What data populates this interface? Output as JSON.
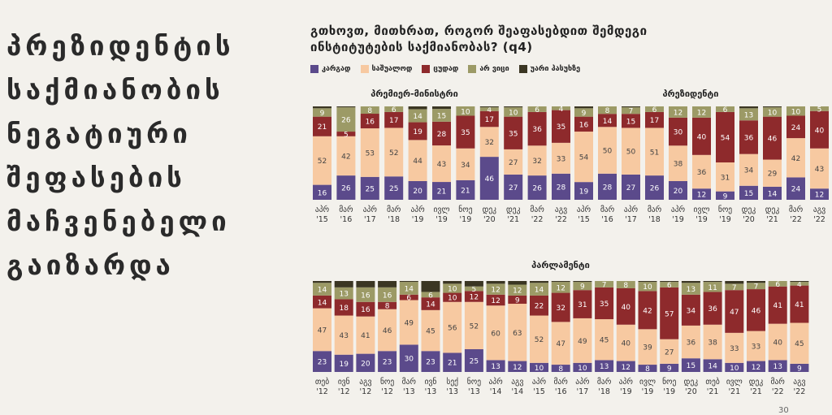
{
  "headline": [
    "პრეზიდენტის",
    "საქმიანობის",
    "ნეგატიური",
    "შეფასების",
    "მაჩვენებელი",
    "გაიზარდა"
  ],
  "question": [
    "გთხოვთ, მითხრათ, როგორ შეაფასებდით  შემდეგი",
    "ინსტიტუტების საქმიანობას? (q4)"
  ],
  "legend": [
    {
      "label": "კარგად",
      "color": "#5b4a8b"
    },
    {
      "label": "საშუალოდ",
      "color": "#f7c9a1"
    },
    {
      "label": "ცუდად",
      "color": "#8e2a2c"
    },
    {
      "label": "არ ვიცი",
      "color": "#9c9a66"
    },
    {
      "label": "უარი პასუხზე",
      "color": "#3b3623"
    }
  ],
  "page_number": "30",
  "chart_data": [
    {
      "type": "bar",
      "title": "პრემიერ-მინისტრი",
      "categories": [
        [
          "აპრ",
          "'15"
        ],
        [
          "მარ",
          "'16"
        ],
        [
          "აპრ",
          "'17"
        ],
        [
          "მარ",
          "'18"
        ],
        [
          "აპრ",
          "'19"
        ],
        [
          "ივლ",
          "'19"
        ],
        [
          "ნოე",
          "'19"
        ],
        [
          "დეკ",
          "'20"
        ],
        [
          "დეკ",
          "'21"
        ],
        [
          "მარ",
          "'22"
        ],
        [
          "აგვ",
          "'22"
        ]
      ],
      "series": [
        {
          "name": "კარგად",
          "values": [
            16,
            26,
            25,
            25,
            20,
            21,
            21,
            46,
            27,
            26,
            28
          ]
        },
        {
          "name": "საშუალოდ",
          "values": [
            52,
            42,
            53,
            52,
            44,
            43,
            34,
            32,
            27,
            32,
            33
          ]
        },
        {
          "name": "ცუდად",
          "values": [
            21,
            5,
            16,
            17,
            19,
            28,
            35,
            17,
            35,
            36,
            35
          ]
        },
        {
          "name": "არ ვიცი",
          "values": [
            9,
            26,
            8,
            6,
            14,
            15,
            10,
            4,
            10,
            6,
            4
          ]
        },
        {
          "name": "უარი პასუხზე",
          "values": [
            2,
            1,
            0,
            0,
            3,
            3,
            0,
            1,
            1,
            0,
            0
          ]
        }
      ]
    },
    {
      "type": "bar",
      "title": "პრეზიდენტი",
      "categories": [
        [
          "აპრ",
          "'15"
        ],
        [
          "მარ",
          "'16"
        ],
        [
          "აპრ",
          "'17"
        ],
        [
          "მარ",
          "'18"
        ],
        [
          "აპრ",
          "'19"
        ],
        [
          "ივლ",
          "'19"
        ],
        [
          "ნოე",
          "'19"
        ],
        [
          "დეკ",
          "'20"
        ],
        [
          "დეკ",
          "'21"
        ],
        [
          "მარ",
          "'22"
        ],
        [
          "აგვ",
          "'22"
        ]
      ],
      "series": [
        {
          "name": "კარგად",
          "values": [
            19,
            28,
            27,
            26,
            20,
            12,
            9,
            15,
            14,
            24,
            12
          ]
        },
        {
          "name": "საშუალოდ",
          "values": [
            54,
            50,
            50,
            51,
            38,
            36,
            31,
            34,
            29,
            42,
            43
          ]
        },
        {
          "name": "ცუდად",
          "values": [
            16,
            14,
            15,
            17,
            30,
            40,
            54,
            36,
            46,
            24,
            40
          ]
        },
        {
          "name": "არ ვიცი",
          "values": [
            9,
            8,
            7,
            6,
            12,
            12,
            6,
            13,
            10,
            10,
            5
          ]
        },
        {
          "name": "უარი პასუხზე",
          "values": [
            2,
            0,
            1,
            0,
            0,
            0,
            0,
            2,
            1,
            0,
            0
          ]
        }
      ]
    },
    {
      "type": "bar",
      "title": "პარლამენტი",
      "categories": [
        [
          "თებ",
          "'12"
        ],
        [
          "ივნ",
          "'12"
        ],
        [
          "აგვ",
          "'12"
        ],
        [
          "ნოე",
          "'12"
        ],
        [
          "მარ",
          "'13"
        ],
        [
          "ივნ",
          "'13"
        ],
        [
          "სექ",
          "'13"
        ],
        [
          "ნოე",
          "'13"
        ],
        [
          "აპრ",
          "'14"
        ],
        [
          "აგვ",
          "'14"
        ],
        [
          "აპრ",
          "'15"
        ],
        [
          "მარ",
          "'16"
        ],
        [
          "აპრ",
          "'17"
        ],
        [
          "მარ",
          "'18"
        ],
        [
          "აპრ",
          "'19"
        ],
        [
          "ივლ",
          "'19"
        ],
        [
          "ნოე",
          "'19"
        ],
        [
          "დეკ",
          "'20"
        ],
        [
          "თებ",
          "'21"
        ],
        [
          "ივლ",
          "'21"
        ],
        [
          "დეკ",
          "'21"
        ],
        [
          "მარ",
          "'22"
        ],
        [
          "აგვ",
          "'22"
        ]
      ],
      "series": [
        {
          "name": "კარგად",
          "values": [
            23,
            19,
            20,
            23,
            30,
            23,
            21,
            25,
            13,
            12,
            10,
            8,
            10,
            13,
            12,
            8,
            9,
            15,
            14,
            10,
            12,
            13,
            9
          ]
        },
        {
          "name": "საშუალოდ",
          "values": [
            47,
            43,
            41,
            46,
            49,
            45,
            56,
            52,
            60,
            63,
            52,
            47,
            49,
            45,
            40,
            39,
            27,
            36,
            38,
            33,
            33,
            40,
            45
          ]
        },
        {
          "name": "ცუდად",
          "values": [
            14,
            18,
            16,
            8,
            6,
            14,
            10,
            12,
            12,
            9,
            22,
            32,
            31,
            35,
            40,
            42,
            57,
            34,
            36,
            47,
            46,
            41,
            41
          ]
        },
        {
          "name": "არ ვიცი",
          "values": [
            14,
            13,
            16,
            16,
            14,
            6,
            10,
            5,
            12,
            12,
            14,
            12,
            9,
            7,
            8,
            10,
            6,
            13,
            11,
            7,
            7,
            6,
            4
          ]
        },
        {
          "name": "უარი პასუხზე",
          "values": [
            2,
            7,
            7,
            7,
            1,
            12,
            3,
            6,
            3,
            4,
            2,
            1,
            1,
            0,
            0,
            1,
            1,
            2,
            1,
            3,
            2,
            0,
            1
          ]
        }
      ]
    }
  ]
}
